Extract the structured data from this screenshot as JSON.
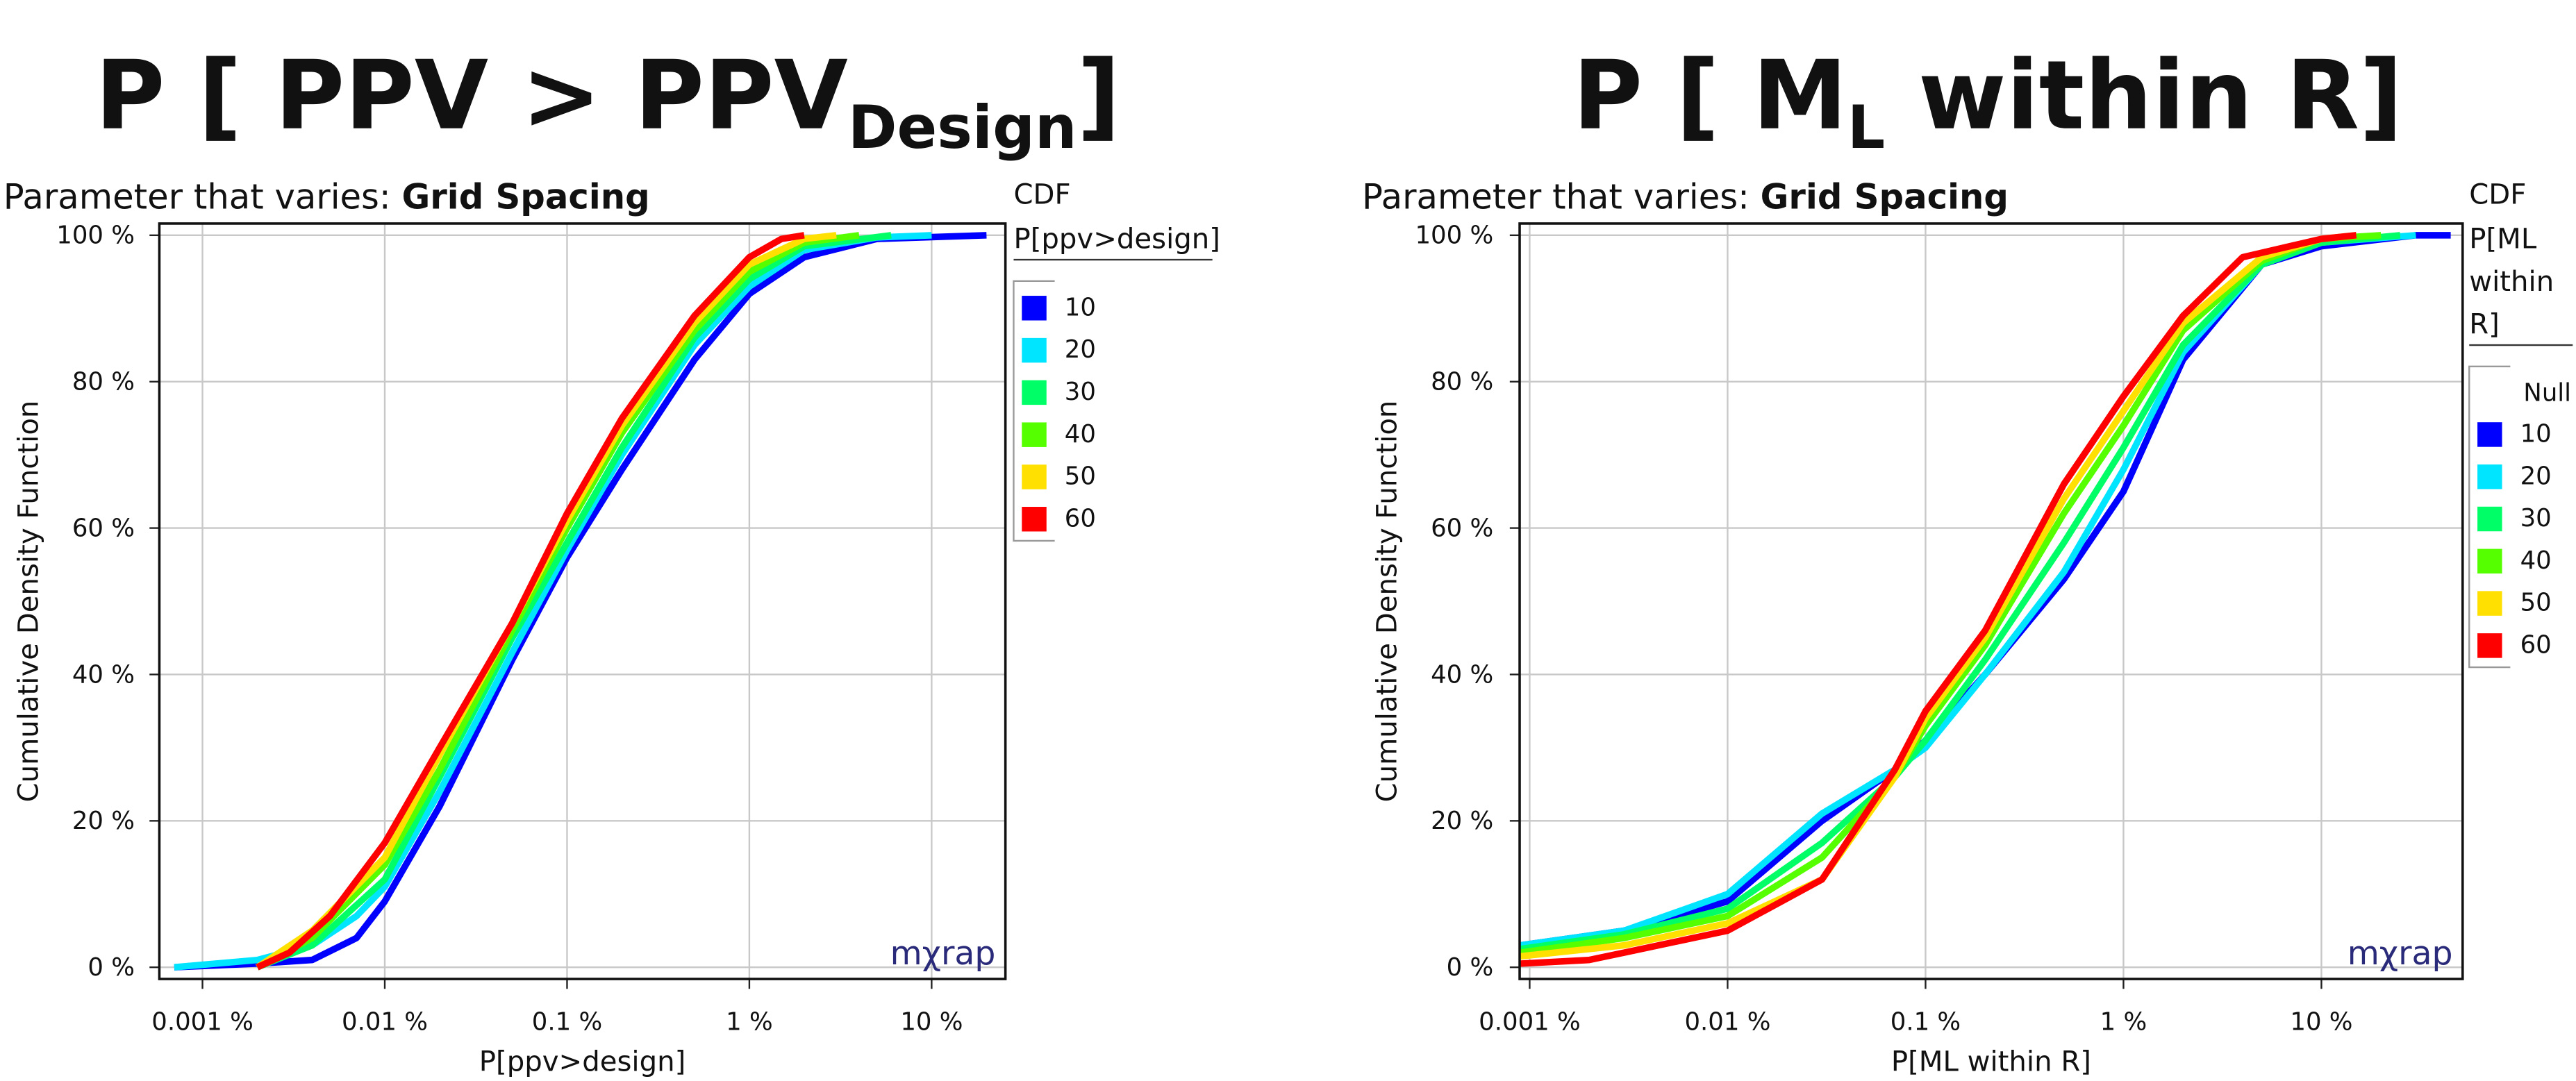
{
  "chart_data": [
    {
      "type": "line",
      "title": "P [ PPV > PPV",
      "title_sub": "Design",
      "title_end": "]",
      "subtitle_label": "Parameter that varies: ",
      "subtitle_value": "Grid Spacing",
      "legend_title": "CDF",
      "legend_subtitle": [
        "P[ppv>design]"
      ],
      "x_label": "P[ppv>design]",
      "y_label": "Cumulative Density Function",
      "watermark": "mχrap",
      "xscale": "log",
      "xlim": [
        0.00058,
        25.4
      ],
      "ylim": [
        -1.6,
        101.6
      ],
      "grid": true,
      "xticks": [
        {
          "value": 0.001,
          "label": "0.001 %"
        },
        {
          "value": 0.01,
          "label": "0.01 %"
        },
        {
          "value": 0.1,
          "label": "0.1 %"
        },
        {
          "value": 1,
          "label": "1 %"
        },
        {
          "value": 10,
          "label": "10 %"
        }
      ],
      "yticks": [
        {
          "value": 0,
          "label": "0 %"
        },
        {
          "value": 20,
          "label": "20 %"
        },
        {
          "value": 40,
          "label": "40 %"
        },
        {
          "value": 60,
          "label": "60 %"
        },
        {
          "value": 80,
          "label": "80 %"
        },
        {
          "value": 100,
          "label": "100 %"
        }
      ],
      "series": [
        {
          "name": "10",
          "color": "#0000ff",
          "x": [
            0.0007,
            0.002,
            0.004,
            0.007,
            0.01,
            0.02,
            0.05,
            0.1,
            0.2,
            0.5,
            1,
            2,
            5,
            20
          ],
          "values": [
            0,
            0.5,
            1,
            4,
            9,
            22,
            42,
            56,
            68,
            83,
            92,
            97,
            99.5,
            100
          ]
        },
        {
          "name": "20",
          "color": "#00e5ff",
          "x": [
            0.0007,
            0.002,
            0.004,
            0.007,
            0.01,
            0.02,
            0.05,
            0.1,
            0.2,
            0.5,
            1,
            2,
            5,
            10
          ],
          "values": [
            0,
            1,
            3,
            7,
            11,
            24,
            43,
            57,
            70,
            85,
            93,
            98,
            99.7,
            100
          ]
        },
        {
          "name": "30",
          "color": "#00ff66",
          "x": [
            0.002,
            0.004,
            0.01,
            0.02,
            0.05,
            0.1,
            0.2,
            0.5,
            1,
            2,
            6
          ],
          "values": [
            0,
            3,
            12,
            26,
            45,
            58,
            71,
            86,
            94,
            98.5,
            100
          ]
        },
        {
          "name": "40",
          "color": "#55ff00",
          "x": [
            0.002,
            0.004,
            0.01,
            0.02,
            0.05,
            0.1,
            0.2,
            0.5,
            1,
            2,
            4
          ],
          "values": [
            0,
            4,
            14,
            27,
            46,
            60,
            73,
            87,
            95,
            99,
            100
          ]
        },
        {
          "name": "50",
          "color": "#ffe000",
          "x": [
            0.002,
            0.004,
            0.01,
            0.02,
            0.05,
            0.1,
            0.2,
            0.5,
            1,
            2,
            3
          ],
          "values": [
            0,
            5,
            15,
            29,
            47,
            61,
            74,
            88,
            96,
            99.5,
            100
          ]
        },
        {
          "name": "60",
          "color": "#ff0000",
          "x": [
            0.002,
            0.003,
            0.005,
            0.01,
            0.02,
            0.05,
            0.1,
            0.2,
            0.5,
            1,
            1.5,
            2
          ],
          "values": [
            0,
            2,
            7,
            17,
            30,
            47,
            62,
            75,
            89,
            97,
            99.5,
            100
          ]
        }
      ]
    },
    {
      "type": "line",
      "title": "P [ M",
      "title_sub": "L",
      "title_end": " within R]",
      "subtitle_label": "Parameter that varies: ",
      "subtitle_value": "Grid Spacing",
      "legend_title": "CDF",
      "legend_subtitle": [
        "P[ML",
        "within",
        "R]"
      ],
      "legend_null": "Null",
      "x_label": "P[ML within R]",
      "y_label": "Cumulative Density Function",
      "watermark": "mχrap",
      "xscale": "log",
      "xlim": [
        0.00089,
        51.7
      ],
      "ylim": [
        -1.6,
        101.6
      ],
      "grid": true,
      "xticks": [
        {
          "value": 0.001,
          "label": "0.001 %"
        },
        {
          "value": 0.01,
          "label": "0.01 %"
        },
        {
          "value": 0.1,
          "label": "0.1 %"
        },
        {
          "value": 1,
          "label": "1 %"
        },
        {
          "value": 10,
          "label": "10 %"
        }
      ],
      "yticks": [
        {
          "value": 0,
          "label": "0 %"
        },
        {
          "value": 20,
          "label": "20 %"
        },
        {
          "value": 40,
          "label": "40 %"
        },
        {
          "value": 60,
          "label": "60 %"
        },
        {
          "value": 80,
          "label": "80 %"
        },
        {
          "value": 100,
          "label": "100 %"
        }
      ],
      "series": [
        {
          "name": "10",
          "color": "#0000ff",
          "x": [
            0.0009,
            0.003,
            0.01,
            0.03,
            0.07,
            0.1,
            0.2,
            0.5,
            1,
            2,
            5,
            10,
            30,
            45
          ],
          "values": [
            3,
            5,
            9,
            20,
            27,
            31,
            40,
            53,
            65,
            83,
            96,
            98.5,
            100,
            100
          ]
        },
        {
          "name": "20",
          "color": "#00e5ff",
          "x": [
            0.0009,
            0.003,
            0.01,
            0.03,
            0.07,
            0.1,
            0.2,
            0.5,
            1,
            2,
            5,
            10,
            30
          ],
          "values": [
            3,
            5,
            10,
            21,
            27,
            30,
            40,
            54,
            68,
            84,
            96,
            99,
            100
          ]
        },
        {
          "name": "30",
          "color": "#00ff66",
          "x": [
            0.0009,
            0.003,
            0.01,
            0.03,
            0.07,
            0.1,
            0.2,
            0.5,
            1,
            2,
            5,
            10,
            25
          ],
          "values": [
            2.5,
            4.5,
            8,
            17,
            26,
            31,
            42,
            58,
            71,
            85,
            96,
            99,
            100
          ]
        },
        {
          "name": "40",
          "color": "#55ff00",
          "x": [
            0.0009,
            0.003,
            0.01,
            0.03,
            0.07,
            0.1,
            0.2,
            0.5,
            1,
            2,
            5,
            10,
            20
          ],
          "values": [
            2,
            4,
            7,
            15,
            26,
            33,
            44,
            62,
            74,
            87,
            96.5,
            99.5,
            100
          ]
        },
        {
          "name": "50",
          "color": "#ffe000",
          "x": [
            0.0009,
            0.003,
            0.01,
            0.03,
            0.07,
            0.1,
            0.2,
            0.5,
            1,
            2,
            5,
            10,
            15
          ],
          "values": [
            1.5,
            3,
            6,
            12,
            26,
            34,
            45,
            64,
            76,
            88,
            97,
            99.5,
            100
          ]
        },
        {
          "name": "60",
          "color": "#ff0000",
          "x": [
            0.0009,
            0.002,
            0.003,
            0.01,
            0.03,
            0.07,
            0.1,
            0.2,
            0.5,
            1,
            2,
            4,
            10,
            15
          ],
          "values": [
            0.5,
            1,
            2,
            5,
            12,
            27,
            35,
            46,
            66,
            78,
            89,
            97,
            99.5,
            100
          ]
        }
      ]
    }
  ]
}
